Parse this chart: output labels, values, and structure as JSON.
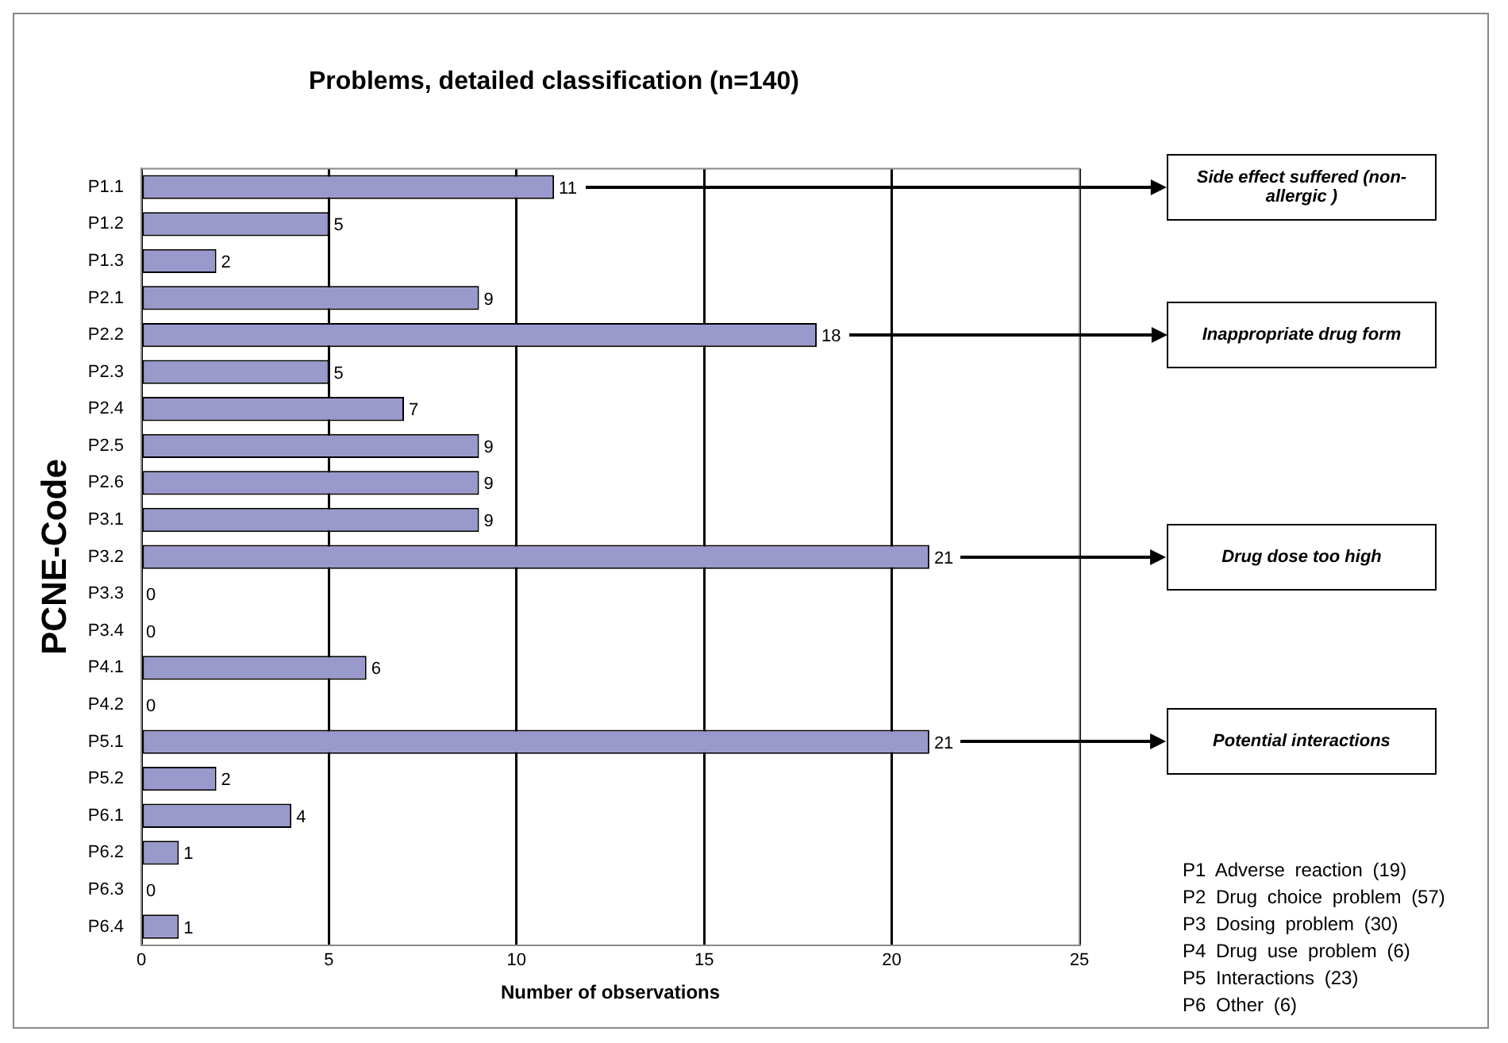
{
  "chart_data": {
    "type": "bar",
    "orientation": "horizontal",
    "title": "Problems, detailed classification (n=140)",
    "xlabel": "Number of observations",
    "ylabel": "PCNE-Code",
    "categories": [
      "P1.1",
      "P1.2",
      "P1.3",
      "P2.1",
      "P2.2",
      "P2.3",
      "P2.4",
      "P2.5",
      "P2.6",
      "P3.1",
      "P3.2",
      "P3.3",
      "P3.4",
      "P4.1",
      "P4.2",
      "P5.1",
      "P5.2",
      "P6.1",
      "P6.2",
      "P6.3",
      "P6.4"
    ],
    "values": [
      11,
      5,
      2,
      9,
      18,
      5,
      7,
      9,
      9,
      9,
      21,
      0,
      0,
      6,
      0,
      21,
      2,
      4,
      1,
      0,
      1
    ],
    "color": "#9999cc",
    "xlim": [
      0,
      25
    ],
    "xticks": [
      0,
      5,
      10,
      15,
      20,
      25
    ],
    "grid": "x",
    "data_labels": true,
    "annotations": [
      "Side effect suffered (non-allergic )",
      "Inappropriate drug form",
      "Drug dose too high",
      "Potential interactions",
      "P1 Adverse reaction (19)",
      "P2 Drug choice problem (57)",
      "P3 Dosing problem (30)",
      "P4 Drug use problem (6)",
      "P5 Interactions (23)",
      "P6 Other (6)"
    ]
  }
}
